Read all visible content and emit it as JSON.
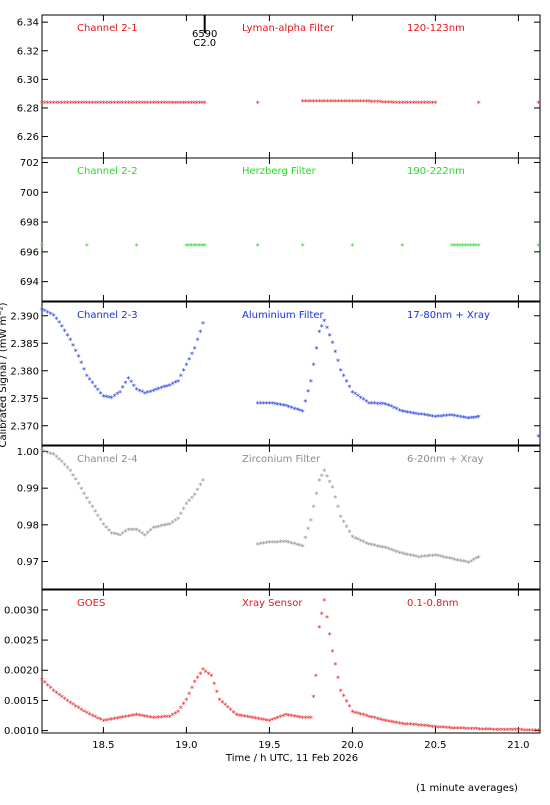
{
  "figure": {
    "x_label": "Time / h UTC, 11 Feb 2026",
    "y_label": "Calibrated Signal / (mW m⁻²)",
    "footnote": "(1 minute averages)",
    "marker_label_top": "6590",
    "marker_label_bottom": "C2.0"
  },
  "chart_data": [
    {
      "type": "scatter",
      "panel": 1,
      "channel": "Channel 2-1",
      "filter": "Lyman-alpha Filter",
      "band": "120-123nm",
      "color": "#e8141a",
      "xlim": [
        18.13,
        21.13
      ],
      "ylim": [
        6.245,
        6.345
      ],
      "yticks": [
        6.26,
        6.28,
        6.3,
        6.32,
        6.34
      ],
      "ytick_labels": [
        "6.26",
        "6.28",
        "6.30",
        "6.32",
        "6.34"
      ],
      "x": [
        18.13,
        18.3,
        18.5,
        18.7,
        18.9,
        19.11,
        19.43,
        19.7,
        19.9,
        20.1,
        20.3,
        20.5,
        20.76,
        21.12
      ],
      "y": [
        6.283,
        6.283,
        6.283,
        6.283,
        6.283,
        6.283,
        6.283,
        6.284,
        6.284,
        6.284,
        6.283,
        6.283,
        6.283,
        6.283
      ]
    },
    {
      "type": "scatter",
      "panel": 2,
      "channel": "Channel 2-2",
      "filter": "Herzberg Filter",
      "band": "190-222nm",
      "color": "#22dd22",
      "xlim": [
        18.13,
        21.13
      ],
      "ylim": [
        692.7,
        702.3
      ],
      "yticks": [
        694,
        696,
        698,
        700,
        702
      ],
      "ytick_labels": [
        "694",
        "696",
        "698",
        "700",
        "702"
      ],
      "x": [
        18.13,
        18.4,
        18.7,
        19.0,
        19.11,
        19.43,
        19.7,
        20.0,
        20.3,
        20.6,
        20.76,
        21.12
      ],
      "y": [
        696.4,
        696.4,
        696.4,
        696.4,
        696.4,
        696.4,
        696.4,
        696.4,
        696.4,
        696.4,
        696.4,
        696.4
      ]
    },
    {
      "type": "scatter",
      "panel": 3,
      "channel": "Channel 2-3",
      "filter": "Aluminium Filter",
      "band": "17-80nm + Xray",
      "color": "#1430e0",
      "xlim": [
        18.13,
        21.13
      ],
      "ylim": [
        2.3665,
        2.3925
      ],
      "yticks": [
        2.37,
        2.375,
        2.38,
        2.385,
        2.39
      ],
      "ytick_labels": [
        "2.370",
        "2.375",
        "2.380",
        "2.385",
        "2.390"
      ],
      "x": [
        18.13,
        18.2,
        18.25,
        18.3,
        18.35,
        18.4,
        18.45,
        18.5,
        18.55,
        18.6,
        18.65,
        18.7,
        18.75,
        18.8,
        18.85,
        18.9,
        18.95,
        19.0,
        19.05,
        19.1,
        19.43,
        19.5,
        19.6,
        19.7,
        19.75,
        19.8,
        19.83,
        19.88,
        19.93,
        20.0,
        20.1,
        20.2,
        20.3,
        20.4,
        20.5,
        20.6,
        20.7,
        20.76,
        21.12
      ],
      "y": [
        2.391,
        2.39,
        2.388,
        2.3855,
        2.3825,
        2.379,
        2.377,
        2.3752,
        2.375,
        2.376,
        2.3785,
        2.3765,
        2.3758,
        2.3762,
        2.3768,
        2.3772,
        2.378,
        2.381,
        2.384,
        2.3885,
        2.374,
        2.374,
        2.3735,
        2.3725,
        2.378,
        2.387,
        2.389,
        2.385,
        2.38,
        2.376,
        2.374,
        2.3738,
        2.3725,
        2.372,
        2.3715,
        2.3718,
        2.3712,
        2.3715,
        2.368
      ]
    },
    {
      "type": "scatter",
      "panel": 4,
      "channel": "Channel 2-4",
      "filter": "Zirconium Filter",
      "band": "6-20nm + Xray",
      "color": "#8c8c8c",
      "xlim": [
        18.13,
        21.13
      ],
      "ylim": [
        0.9625,
        1.0015
      ],
      "yticks": [
        0.97,
        0.98,
        0.99,
        1.0
      ],
      "ytick_labels": [
        "0.97",
        "0.98",
        "0.99",
        "1.00"
      ],
      "x": [
        18.13,
        18.2,
        18.25,
        18.3,
        18.35,
        18.4,
        18.45,
        18.5,
        18.55,
        18.6,
        18.65,
        18.7,
        18.75,
        18.8,
        18.85,
        18.9,
        18.95,
        19.0,
        19.05,
        19.1,
        19.43,
        19.5,
        19.6,
        19.7,
        19.75,
        19.8,
        19.83,
        19.88,
        19.93,
        20.0,
        20.1,
        20.2,
        20.3,
        20.4,
        20.5,
        20.6,
        20.7,
        20.76
      ],
      "y": [
        1.0,
        0.999,
        0.997,
        0.9945,
        0.991,
        0.987,
        0.9835,
        0.98,
        0.9775,
        0.977,
        0.9785,
        0.9785,
        0.977,
        0.979,
        0.9795,
        0.98,
        0.9815,
        0.9855,
        0.988,
        0.992,
        0.9745,
        0.975,
        0.9752,
        0.974,
        0.981,
        0.992,
        0.9945,
        0.99,
        0.982,
        0.9765,
        0.9745,
        0.9735,
        0.972,
        0.971,
        0.9715,
        0.9705,
        0.9695,
        0.971
      ]
    },
    {
      "type": "scatter",
      "panel": 5,
      "channel": "GOES",
      "filter": "Xray Sensor",
      "band": "0.1-0.8nm",
      "color": "#e8141a",
      "xlim": [
        18.13,
        21.13
      ],
      "ylim": [
        0.00096,
        0.00333
      ],
      "yticks": [
        0.001,
        0.0015,
        0.002,
        0.0025,
        0.003
      ],
      "ytick_labels": [
        "0.0010",
        "0.0015",
        "0.0020",
        "0.0025",
        "0.0030"
      ],
      "x": [
        18.13,
        18.2,
        18.3,
        18.4,
        18.5,
        18.6,
        18.7,
        18.8,
        18.9,
        18.95,
        19.0,
        19.05,
        19.1,
        19.15,
        19.2,
        19.3,
        19.4,
        19.5,
        19.6,
        19.7,
        19.75,
        19.78,
        19.8,
        19.83,
        19.88,
        19.93,
        20.0,
        20.1,
        20.2,
        20.3,
        20.4,
        20.5,
        20.6,
        20.7,
        20.8,
        20.9,
        21.0,
        21.12
      ],
      "y": [
        0.00183,
        0.00165,
        0.00145,
        0.00128,
        0.00115,
        0.0012,
        0.00125,
        0.0012,
        0.00122,
        0.0013,
        0.0015,
        0.0018,
        0.002,
        0.0019,
        0.0015,
        0.00125,
        0.0012,
        0.00115,
        0.00125,
        0.0012,
        0.0012,
        0.0019,
        0.0027,
        0.00315,
        0.0023,
        0.00165,
        0.0013,
        0.00122,
        0.00115,
        0.0011,
        0.00108,
        0.00105,
        0.00103,
        0.00102,
        0.00101,
        0.001,
        0.001,
        0.00099
      ]
    }
  ],
  "x_axis": {
    "ticks": [
      18.5,
      19.0,
      19.5,
      20.0,
      20.5,
      21.0
    ],
    "tick_labels": [
      "18.5",
      "19.0",
      "19.5",
      "20.0",
      "20.5",
      "21.0"
    ],
    "marker_at": 19.11
  }
}
